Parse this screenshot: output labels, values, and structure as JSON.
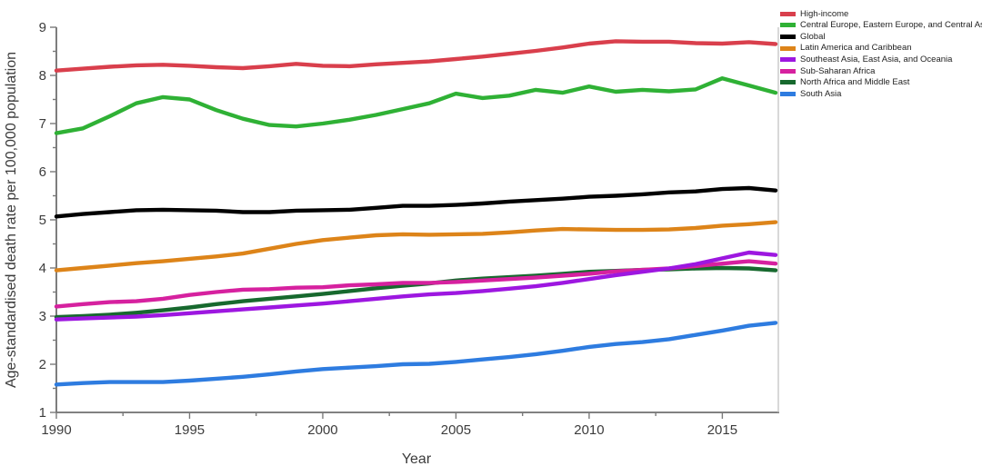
{
  "chart_data": {
    "type": "line",
    "title": "",
    "xlabel": "Year",
    "ylabel": "Age-standardised death rate per 100,000 population",
    "grid": false,
    "legend_position": "top-right-outside",
    "x_range": [
      1990,
      2017
    ],
    "y_range": [
      1,
      9
    ],
    "x_major_ticks": [
      1990,
      1995,
      2000,
      2005,
      2010,
      2015
    ],
    "x_minor_ticks": [
      1992.5,
      1997.5,
      2002.5,
      2007.5,
      2012.5
    ],
    "y_major_ticks": [
      1,
      2,
      3,
      4,
      5,
      6,
      7,
      8,
      9
    ],
    "y_minor_ticks": [
      1.5,
      2.5,
      3.5,
      4.5,
      5.5,
      6.5,
      7.5,
      8.5
    ],
    "x": [
      1990,
      1991,
      1992,
      1993,
      1994,
      1995,
      1996,
      1997,
      1998,
      1999,
      2000,
      2001,
      2002,
      2003,
      2004,
      2005,
      2006,
      2007,
      2008,
      2009,
      2010,
      2011,
      2012,
      2013,
      2014,
      2015,
      2016,
      2017
    ],
    "series": [
      {
        "name": "High-income",
        "color": "#d93f4c",
        "values": [
          8.1,
          8.14,
          8.18,
          8.21,
          8.22,
          8.2,
          8.17,
          8.15,
          8.19,
          8.24,
          8.2,
          8.19,
          8.23,
          8.26,
          8.29,
          8.34,
          8.39,
          8.45,
          8.51,
          8.58,
          8.66,
          8.71,
          8.7,
          8.7,
          8.67,
          8.66,
          8.69,
          8.65
        ]
      },
      {
        "name": "Central Europe, Eastern Europe, and Central Asia",
        "color": "#2fb135",
        "values": [
          6.8,
          6.9,
          7.15,
          7.42,
          7.55,
          7.5,
          7.28,
          7.1,
          6.97,
          6.94,
          7.0,
          7.08,
          7.18,
          7.3,
          7.42,
          7.62,
          7.53,
          7.58,
          7.7,
          7.64,
          7.77,
          7.66,
          7.7,
          7.67,
          7.71,
          7.94,
          7.79,
          7.64
        ]
      },
      {
        "name": "Global",
        "color": "#000000",
        "values": [
          5.07,
          5.12,
          5.16,
          5.2,
          5.21,
          5.2,
          5.19,
          5.16,
          5.16,
          5.19,
          5.2,
          5.21,
          5.25,
          5.29,
          5.29,
          5.31,
          5.34,
          5.38,
          5.41,
          5.44,
          5.48,
          5.5,
          5.53,
          5.57,
          5.59,
          5.64,
          5.66,
          5.61
        ]
      },
      {
        "name": "Latin America and Caribbean",
        "color": "#dd8419",
        "values": [
          3.95,
          4.0,
          4.05,
          4.1,
          4.14,
          4.19,
          4.24,
          4.3,
          4.4,
          4.5,
          4.58,
          4.63,
          4.68,
          4.7,
          4.69,
          4.7,
          4.71,
          4.74,
          4.78,
          4.81,
          4.8,
          4.79,
          4.79,
          4.8,
          4.83,
          4.88,
          4.91,
          4.95
        ]
      },
      {
        "name": "Southeast Asia, East Asia, and Oceania",
        "color": "#9d17e0",
        "values": [
          2.93,
          2.95,
          2.97,
          2.99,
          3.02,
          3.06,
          3.1,
          3.14,
          3.18,
          3.22,
          3.26,
          3.31,
          3.36,
          3.41,
          3.45,
          3.48,
          3.52,
          3.57,
          3.62,
          3.69,
          3.77,
          3.85,
          3.92,
          3.99,
          4.08,
          4.2,
          4.32,
          4.27
        ]
      },
      {
        "name": "Sub-Saharan Africa",
        "color": "#d6219f",
        "values": [
          3.2,
          3.25,
          3.29,
          3.31,
          3.36,
          3.44,
          3.5,
          3.55,
          3.56,
          3.59,
          3.6,
          3.64,
          3.66,
          3.69,
          3.69,
          3.71,
          3.74,
          3.77,
          3.8,
          3.84,
          3.88,
          3.93,
          3.96,
          3.99,
          4.04,
          4.09,
          4.14,
          4.09
        ]
      },
      {
        "name": "North Africa and Middle East",
        "color": "#17692e",
        "values": [
          2.98,
          3.0,
          3.03,
          3.07,
          3.12,
          3.18,
          3.25,
          3.31,
          3.36,
          3.41,
          3.46,
          3.52,
          3.58,
          3.63,
          3.68,
          3.74,
          3.78,
          3.81,
          3.84,
          3.88,
          3.92,
          3.94,
          3.96,
          3.97,
          3.99,
          4.0,
          3.99,
          3.95
        ]
      },
      {
        "name": "South Asia",
        "color": "#2e7ce0",
        "values": [
          1.58,
          1.61,
          1.63,
          1.63,
          1.63,
          1.66,
          1.7,
          1.74,
          1.79,
          1.85,
          1.9,
          1.93,
          1.96,
          2.0,
          2.01,
          2.05,
          2.1,
          2.15,
          2.21,
          2.28,
          2.36,
          2.42,
          2.46,
          2.52,
          2.61,
          2.7,
          2.8,
          2.86
        ]
      }
    ]
  }
}
